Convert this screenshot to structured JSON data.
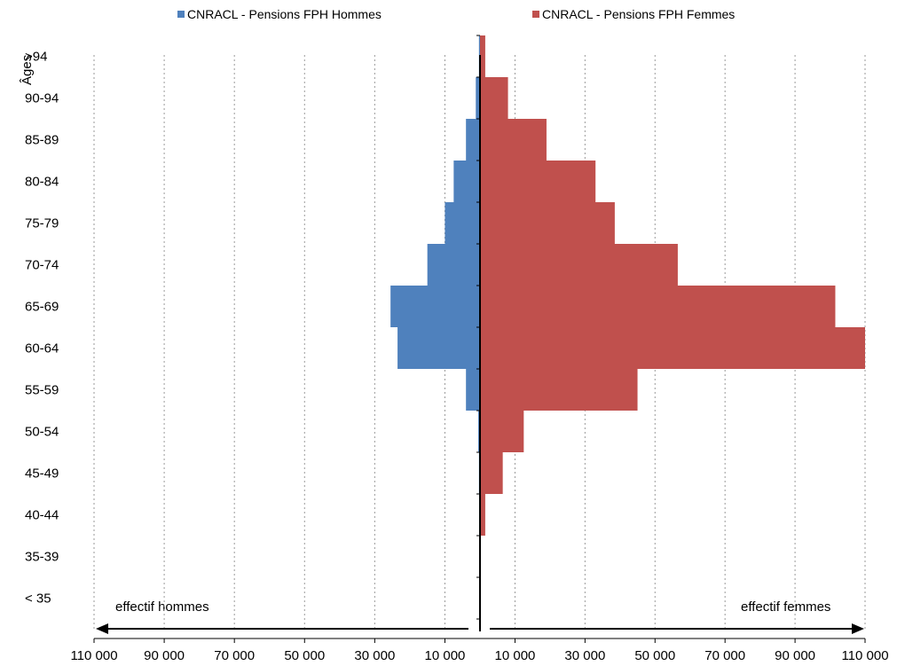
{
  "legend": {
    "men": {
      "label": "CNRACL - Pensions FPH Hommes",
      "color": "#4f81bd"
    },
    "women": {
      "label": "CNRACL - Pensions FPH Femmes",
      "color": "#c0504d"
    }
  },
  "axis": {
    "y_title": "Âges",
    "left_arrow_label": "effectif  hommes",
    "right_arrow_label": "effectif femmes"
  },
  "chart_data": {
    "type": "bar",
    "orientation": "horizontal",
    "categories": [
      "< 35",
      "35-39",
      "40-44",
      "45-49",
      "50-54",
      "55-59",
      "60-64",
      "65-69",
      "70-74",
      "75-79",
      "80-84",
      "85-89",
      "90-94",
      ">94"
    ],
    "series": [
      {
        "name": "CNRACL - Pensions FPH Hommes",
        "color": "#4f81bd",
        "values": [
          0,
          0,
          200,
          300,
          500,
          4000,
          23500,
          25500,
          15000,
          10000,
          7500,
          4000,
          1200,
          300
        ]
      },
      {
        "name": "CNRACL - Pensions FPH Femmes",
        "color": "#c0504d",
        "values": [
          0,
          100,
          1500,
          6500,
          12500,
          45000,
          110000,
          101500,
          56500,
          38500,
          33000,
          19000,
          8000,
          1500
        ]
      }
    ],
    "xlim": [
      -110000,
      110000
    ],
    "x_tick_values": [
      -110000,
      -90000,
      -70000,
      -50000,
      -30000,
      -10000,
      10000,
      30000,
      50000,
      70000,
      90000,
      110000
    ],
    "x_tick_labels": [
      "110 000",
      "90 000",
      "70 000",
      "50 000",
      "30 000",
      "10 000",
      "10 000",
      "30 000",
      "50 000",
      "70 000",
      "90 000",
      "110 000"
    ],
    "grid": "vertical dotted",
    "legend_position": "top"
  }
}
